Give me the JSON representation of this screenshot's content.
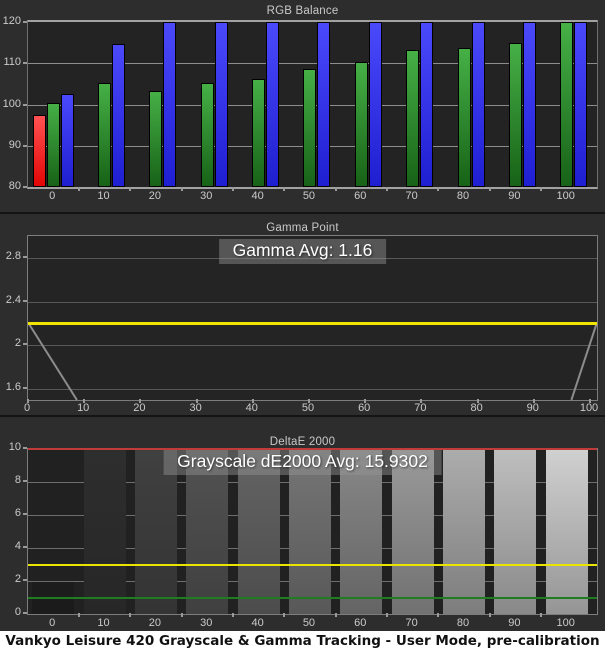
{
  "caption": "Vankyo Leisure 420 Grayscale & Gamma Tracking - User Mode, pre-calibration",
  "colors": {
    "panel_bg": "#2d2d2d",
    "plot_bg": "#232323",
    "grid": "#8d8d8d",
    "text": "#cbcbcb",
    "red_bar": "#e30505",
    "green_bar": "#1e8a1e",
    "blue_bar": "#2a2ae8",
    "gamma_reference_yellow": "#f0e400",
    "gamma_measured_gray": "#8c8c8c",
    "de_limit_red": "#c23b3b",
    "de_limit_yellow": "#e8e400",
    "de_limit_green": "#1e7d1e"
  },
  "chart_data": [
    {
      "id": "rgb",
      "type": "bar",
      "title": "RGB Balance",
      "categories": [
        0,
        10,
        20,
        30,
        40,
        50,
        60,
        70,
        80,
        90,
        100
      ],
      "ylim": [
        80,
        120
      ],
      "yticks": [
        80,
        90,
        100,
        110,
        120
      ],
      "grid": true,
      "series": [
        {
          "name": "Red",
          "values": [
            97.5,
            null,
            null,
            null,
            null,
            null,
            null,
            null,
            null,
            null,
            null
          ]
        },
        {
          "name": "Green",
          "values": [
            100.3,
            105.3,
            103.3,
            105.2,
            106.2,
            108.5,
            110.4,
            113.1,
            113.8,
            114.8,
            120.5
          ]
        },
        {
          "name": "Blue",
          "values": [
            102.5,
            114.6,
            120.5,
            120.5,
            120.5,
            120.5,
            120.5,
            120.5,
            120.5,
            120.5,
            120.5
          ]
        }
      ],
      "note": "Values of 120.5 are off-scale high (bars clipped at chart top 120); red is off-scale low (<80) for stimulus 10-100."
    },
    {
      "id": "gamma",
      "type": "line",
      "title": "Gamma Point",
      "avg_label": "Gamma Avg: 1.16",
      "ylim": [
        1.5,
        3.0
      ],
      "yticks": [
        1.6,
        2,
        2.4,
        2.8
      ],
      "ytick_labels": [
        "1.6",
        "2",
        "2.4",
        "2.8"
      ],
      "xticks": [
        0,
        10,
        20,
        30,
        40,
        50,
        60,
        70,
        80,
        90,
        100
      ],
      "reference_line": {
        "value": 2.2,
        "color": "#f0e400"
      },
      "measured_segments": [
        [
          [
            0,
            2.21
          ],
          [
            8.6,
            1.5
          ]
        ],
        [
          [
            95.5,
            1.5
          ],
          [
            100,
            2.21
          ]
        ]
      ],
      "note": "Measured gamma (gray line) falls below the chart minimum of 1.5 between ~stimulus 9 and ~95; yellow line is the 2.2 reference."
    },
    {
      "id": "deltae",
      "type": "bar",
      "title": "DeltaE 2000",
      "avg_label": "Grayscale dE2000 Avg: 15.9302",
      "categories": [
        0,
        10,
        20,
        30,
        40,
        50,
        60,
        70,
        80,
        90,
        100
      ],
      "values": [
        2.0,
        10.5,
        10.5,
        10.5,
        10.5,
        10.5,
        10.5,
        10.5,
        10.5,
        10.5,
        10.5
      ],
      "ylim": [
        0,
        10
      ],
      "yticks": [
        0,
        2,
        4,
        6,
        8,
        10
      ],
      "limit_lines": [
        {
          "value": 10,
          "color": "#c23b3b",
          "thickness": 2
        },
        {
          "value": 3,
          "color": "#e8e400",
          "thickness": 2
        },
        {
          "value": 1,
          "color": "#1e7d1e",
          "thickness": 2
        }
      ],
      "note": "Bars for stimulus 10-100 exceed the chart maximum of 10 dE (clipped at top); bar fill shows the measured gray level."
    }
  ]
}
